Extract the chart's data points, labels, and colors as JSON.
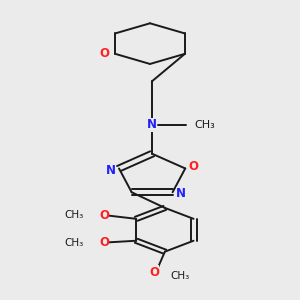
{
  "bg_color": "#ebebeb",
  "bond_color": "#1a1a1a",
  "N_color": "#2020ff",
  "O_color": "#ff2020",
  "line_width": 1.4,
  "font_size": 8.5,
  "fig_size": [
    3.0,
    3.0
  ],
  "dpi": 100,
  "xlim": [
    0.15,
    0.85
  ],
  "ylim": [
    0.02,
    0.97
  ]
}
